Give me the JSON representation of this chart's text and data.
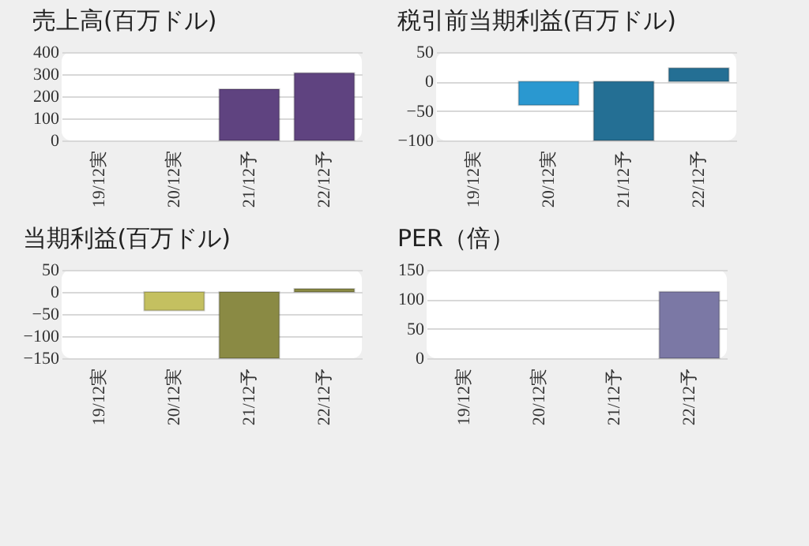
{
  "chart_data": [
    {
      "type": "bar",
      "title": "売上高(百万ドル)",
      "categories": [
        "19/12実",
        "20/12実",
        "21/12予",
        "22/12予"
      ],
      "values": [
        null,
        null,
        232,
        305
      ],
      "colors": [
        "#5f4380",
        "#5f4380",
        "#5f4380",
        "#5f4380"
      ],
      "ylim": [
        0,
        400
      ],
      "yticks": [
        0,
        100,
        200,
        300,
        400
      ],
      "grid": true
    },
    {
      "type": "bar",
      "title": "税引前当期利益(百万ドル)",
      "categories": [
        "19/12実",
        "20/12実",
        "21/12予",
        "22/12予"
      ],
      "values": [
        null,
        -40,
        -100,
        23
      ],
      "colors": [
        "#2a98d0",
        "#2a98d0",
        "#246f94",
        "#246f94"
      ],
      "ylim": [
        -100,
        50
      ],
      "yticks": [
        -100,
        -50,
        0,
        50
      ],
      "grid": true
    },
    {
      "type": "bar",
      "title": "当期利益(百万ドル)",
      "categories": [
        "19/12実",
        "20/12実",
        "21/12予",
        "22/12予"
      ],
      "values": [
        null,
        -42,
        -150,
        7
      ],
      "colors": [
        "#c4c060",
        "#c4c060",
        "#8a8a44",
        "#8a8a44"
      ],
      "ylim": [
        -150,
        50
      ],
      "yticks": [
        -150,
        -100,
        -50,
        0,
        50
      ],
      "grid": true
    },
    {
      "type": "bar",
      "title": "PER（倍）",
      "categories": [
        "19/12実",
        "20/12実",
        "21/12予",
        "22/12予"
      ],
      "values": [
        null,
        null,
        null,
        113
      ],
      "colors": [
        "#7b78a5",
        "#7b78a5",
        "#7b78a5",
        "#7b78a5"
      ],
      "ylim": [
        0,
        150
      ],
      "yticks": [
        0,
        50,
        100,
        150
      ],
      "grid": true
    }
  ]
}
